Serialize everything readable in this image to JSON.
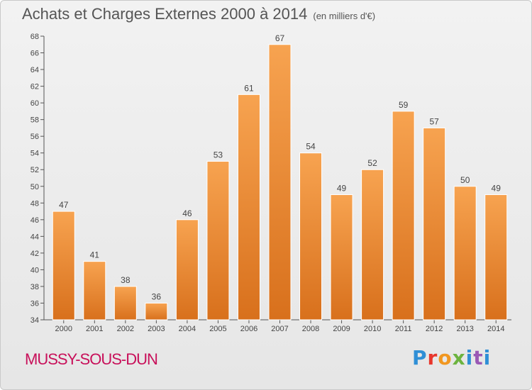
{
  "header": {
    "title": "Achats et Charges Externes 2000 à 2014",
    "unit": "(en milliers d'€)"
  },
  "footer": {
    "commune": "MUSSY-SOUS-DUN",
    "logo_letters": [
      "P",
      "r",
      "o",
      "x",
      "i",
      "t",
      "i"
    ]
  },
  "chart_data": {
    "type": "bar",
    "title": "Achats et Charges Externes 2000 à 2014",
    "subtitle": "(en milliers d'€)",
    "categories": [
      "2000",
      "2001",
      "2002",
      "2003",
      "2004",
      "2005",
      "2006",
      "2007",
      "2008",
      "2009",
      "2010",
      "2011",
      "2012",
      "2013",
      "2014"
    ],
    "values": [
      47,
      41,
      38,
      36,
      46,
      53,
      61,
      67,
      54,
      49,
      52,
      59,
      57,
      50,
      49
    ],
    "ylim": [
      34,
      68
    ],
    "yticks": [
      34,
      36,
      38,
      40,
      42,
      44,
      46,
      48,
      50,
      52,
      54,
      56,
      58,
      60,
      62,
      64,
      66,
      68
    ],
    "xlabel": "",
    "ylabel": "",
    "grid": false,
    "bar_color": "#f08a26"
  }
}
